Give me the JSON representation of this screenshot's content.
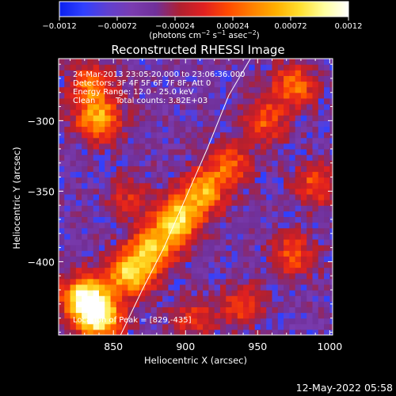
{
  "chart_data": {
    "type": "heatmap",
    "title": "Reconstructed RHESSI Image",
    "xlabel": "Heliocentric X (arcsec)",
    "ylabel": "Heliocentric Y (arcsec)",
    "xlim": [
      812,
      1002
    ],
    "ylim": [
      -452,
      -256
    ],
    "x_ticks": [
      850,
      900,
      950,
      1000
    ],
    "x_tick_labels": [
      "850",
      "900",
      "950",
      "1000"
    ],
    "y_ticks": [
      -300,
      -350,
      -400
    ],
    "y_tick_labels": [
      "−300",
      "−350",
      "−400"
    ],
    "colorbar": {
      "range": [
        -0.0012,
        0.0012
      ],
      "ticks": [
        -0.0012,
        -0.00072,
        -0.00024,
        0.00024,
        0.00072,
        0.0012
      ],
      "tick_labels": [
        "−0.0012",
        "−0.00072",
        "−0.00024",
        "0.00024",
        "0.00072",
        "0.0012"
      ],
      "units_label": "(photons cm",
      "units_sup1": "−2",
      "units_mid": " s",
      "units_sup2": "−1",
      "units_tail": " asec",
      "units_sup3": "−2",
      "units_close": ")"
    },
    "annotations": {
      "time_range": "24-Mar-2013 23:05:20.000 to 23:06:36.000",
      "detectors": "Detectors: 3F 4F 5F 6F 7F 8F, Att 0",
      "energy_range": "Energy Range: 12.0 - 25.0 keV",
      "clean_label": "Clean",
      "total_counts": "Total counts: 3.82E+03",
      "peak_location": "Location of Peak = [829,-435]"
    },
    "limb_curve": [
      [
        855,
        -452
      ],
      [
        870,
        -420
      ],
      [
        885,
        -390
      ],
      [
        900,
        -355
      ],
      [
        915,
        -320
      ],
      [
        930,
        -282
      ],
      [
        945,
        -256
      ]
    ],
    "peak": [
      829,
      -435
    ],
    "emission_sources": [
      {
        "x": 830,
        "y": -425,
        "amplitude": 1.0
      },
      {
        "x": 840,
        "y": -440,
        "amplitude": 0.95
      },
      {
        "x": 862,
        "y": -408,
        "amplitude": 0.85
      },
      {
        "x": 878,
        "y": -390,
        "amplitude": 0.75
      },
      {
        "x": 895,
        "y": -370,
        "amplitude": 0.85
      },
      {
        "x": 912,
        "y": -350,
        "amplitude": 0.7
      },
      {
        "x": 930,
        "y": -330,
        "amplitude": 0.5
      },
      {
        "x": 840,
        "y": -300,
        "amplitude": 0.7
      },
      {
        "x": 835,
        "y": -275,
        "amplitude": 0.55
      },
      {
        "x": 955,
        "y": -300,
        "amplitude": 0.45
      },
      {
        "x": 975,
        "y": -275,
        "amplitude": 0.55
      },
      {
        "x": 990,
        "y": -345,
        "amplitude": 0.45
      },
      {
        "x": 975,
        "y": -395,
        "amplitude": 0.45
      },
      {
        "x": 940,
        "y": -430,
        "amplitude": 0.4
      },
      {
        "x": 905,
        "y": -440,
        "amplitude": 0.35
      },
      {
        "x": 860,
        "y": -355,
        "amplitude": 0.3
      }
    ],
    "grid": false,
    "colormap": [
      "#0a20f0",
      "#3040ff",
      "#6040d0",
      "#7a3cb0",
      "#70309a",
      "#b02030",
      "#e02020",
      "#ff4a00",
      "#ff8000",
      "#ffb000",
      "#ffe030",
      "#ffffa0",
      "#ffffff"
    ]
  },
  "footer": {
    "timestamp": "12-May-2022 05:58"
  }
}
